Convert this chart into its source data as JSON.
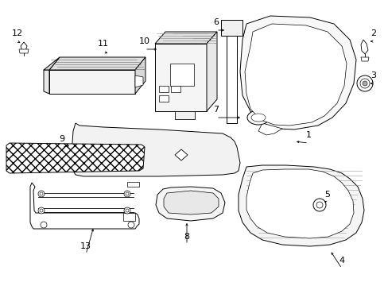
{
  "bg_color": "#ffffff",
  "line_color": "#000000",
  "fig_width": 4.89,
  "fig_height": 3.6,
  "dpi": 100,
  "label_size": 8
}
